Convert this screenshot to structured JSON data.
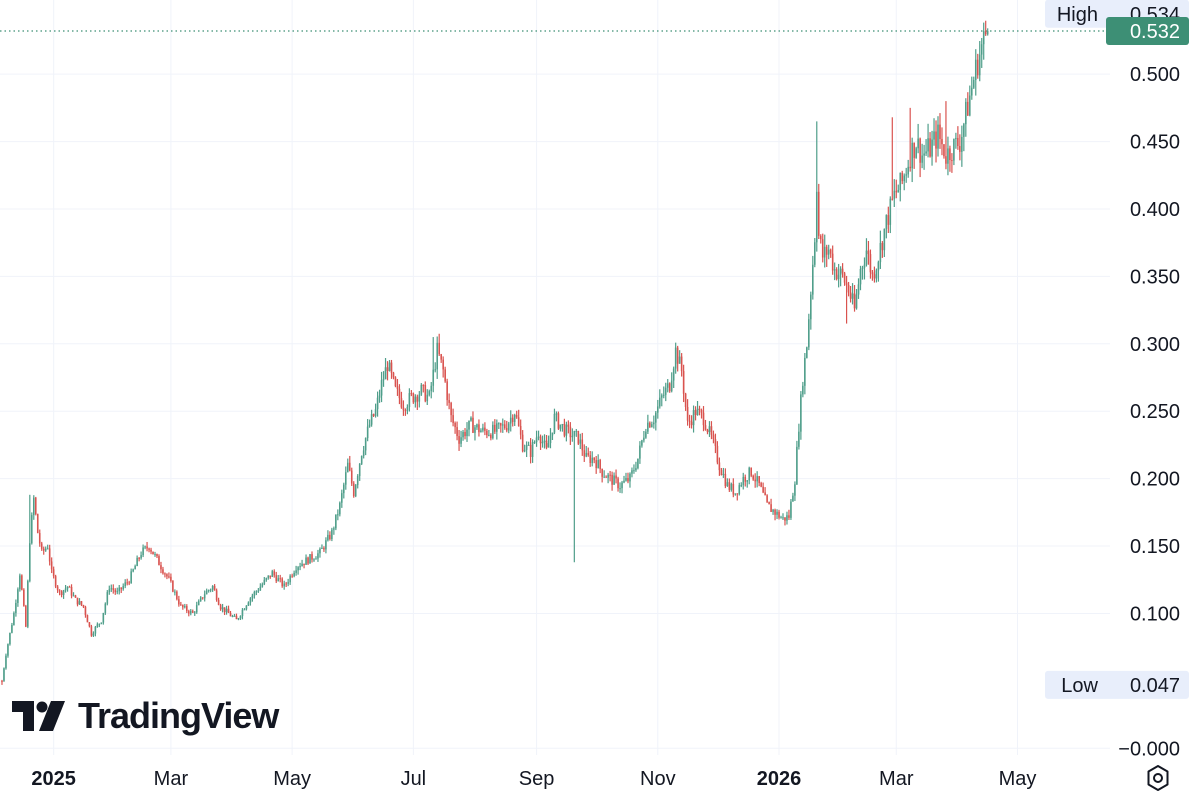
{
  "brand": {
    "name": "TradingView"
  },
  "colors": {
    "up": "#26a69a",
    "down": "#ef5350",
    "candle_up": "#4f9e8a",
    "candle_down": "#d9534f",
    "grid": "#f0f3fa",
    "text": "#131722",
    "badge_bg": "#e8eefb",
    "current_bg": "#3d8f75",
    "current_text": "#ffffff"
  },
  "icons": {
    "settings": "settings-gear-icon"
  },
  "chart_data": {
    "type": "candlestick",
    "title": "",
    "x_tick_labels": [
      {
        "label": "2025",
        "year": true,
        "t": 0
      },
      {
        "label": "Mar",
        "year": false,
        "t": 59
      },
      {
        "label": "May",
        "year": false,
        "t": 120
      },
      {
        "label": "Jul",
        "year": false,
        "t": 181
      },
      {
        "label": "Sep",
        "year": false,
        "t": 243
      },
      {
        "label": "Nov",
        "year": false,
        "t": 304
      },
      {
        "label": "2026",
        "year": true,
        "t": 365
      },
      {
        "label": "Mar",
        "year": false,
        "t": 424
      },
      {
        "label": "May",
        "year": false,
        "t": 485
      }
    ],
    "y_ticks": [
      {
        "label": "0.500",
        "v": 0.5
      },
      {
        "label": "0.450",
        "v": 0.45
      },
      {
        "label": "0.400",
        "v": 0.4
      },
      {
        "label": "0.350",
        "v": 0.35
      },
      {
        "label": "0.300",
        "v": 0.3
      },
      {
        "label": "0.250",
        "v": 0.25
      },
      {
        "label": "0.200",
        "v": 0.2
      },
      {
        "label": "0.150",
        "v": 0.15
      },
      {
        "label": "0.100",
        "v": 0.1
      },
      {
        "label": "−0.000",
        "v": 0.0
      }
    ],
    "y_range": [
      -0.005,
      0.555
    ],
    "x_range_days": [
      -27,
      524
    ],
    "high": {
      "label": "High",
      "value": 0.534,
      "display": "0.534"
    },
    "low": {
      "label": "Low",
      "value": 0.047,
      "display": "0.047"
    },
    "current": {
      "value": 0.532,
      "display": "0.532"
    },
    "price_path": [
      [
        -26,
        0.05
      ],
      [
        -24,
        0.07
      ],
      [
        -20,
        0.1
      ],
      [
        -17,
        0.13
      ],
      [
        -14,
        0.09
      ],
      [
        -12,
        0.155
      ],
      [
        -10,
        0.185
      ],
      [
        -8,
        0.16
      ],
      [
        -6,
        0.145
      ],
      [
        -3,
        0.15
      ],
      [
        -1,
        0.13
      ],
      [
        3,
        0.115
      ],
      [
        7,
        0.12
      ],
      [
        11,
        0.11
      ],
      [
        15,
        0.105
      ],
      [
        19,
        0.085
      ],
      [
        24,
        0.095
      ],
      [
        28,
        0.12
      ],
      [
        32,
        0.115
      ],
      [
        38,
        0.125
      ],
      [
        44,
        0.145
      ],
      [
        48,
        0.15
      ],
      [
        52,
        0.14
      ],
      [
        58,
        0.125
      ],
      [
        64,
        0.105
      ],
      [
        70,
        0.1
      ],
      [
        76,
        0.115
      ],
      [
        80,
        0.12
      ],
      [
        84,
        0.105
      ],
      [
        88,
        0.1
      ],
      [
        92,
        0.095
      ],
      [
        98,
        0.11
      ],
      [
        104,
        0.12
      ],
      [
        110,
        0.13
      ],
      [
        116,
        0.12
      ],
      [
        122,
        0.135
      ],
      [
        128,
        0.14
      ],
      [
        134,
        0.145
      ],
      [
        140,
        0.16
      ],
      [
        144,
        0.18
      ],
      [
        148,
        0.21
      ],
      [
        151,
        0.19
      ],
      [
        155,
        0.22
      ],
      [
        159,
        0.24
      ],
      [
        162,
        0.25
      ],
      [
        165,
        0.27
      ],
      [
        168,
        0.285
      ],
      [
        172,
        0.265
      ],
      [
        176,
        0.255
      ],
      [
        180,
        0.26
      ],
      [
        185,
        0.265
      ],
      [
        189,
        0.26
      ],
      [
        193,
        0.295
      ],
      [
        196,
        0.28
      ],
      [
        200,
        0.245
      ],
      [
        204,
        0.23
      ],
      [
        210,
        0.24
      ],
      [
        216,
        0.235
      ],
      [
        222,
        0.235
      ],
      [
        228,
        0.24
      ],
      [
        232,
        0.25
      ],
      [
        236,
        0.225
      ],
      [
        240,
        0.22
      ],
      [
        244,
        0.235
      ],
      [
        248,
        0.22
      ],
      [
        252,
        0.245
      ],
      [
        258,
        0.235
      ],
      [
        264,
        0.23
      ],
      [
        268,
        0.215
      ],
      [
        272,
        0.215
      ],
      [
        276,
        0.205
      ],
      [
        280,
        0.2
      ],
      [
        285,
        0.195
      ],
      [
        290,
        0.2
      ],
      [
        294,
        0.215
      ],
      [
        298,
        0.24
      ],
      [
        302,
        0.245
      ],
      [
        306,
        0.26
      ],
      [
        310,
        0.27
      ],
      [
        313,
        0.295
      ],
      [
        316,
        0.28
      ],
      [
        319,
        0.24
      ],
      [
        323,
        0.25
      ],
      [
        327,
        0.245
      ],
      [
        331,
        0.23
      ],
      [
        335,
        0.21
      ],
      [
        339,
        0.195
      ],
      [
        343,
        0.19
      ],
      [
        347,
        0.2
      ],
      [
        351,
        0.205
      ],
      [
        355,
        0.195
      ],
      [
        359,
        0.18
      ],
      [
        363,
        0.175
      ],
      [
        367,
        0.17
      ],
      [
        370,
        0.172
      ],
      [
        373,
        0.2
      ],
      [
        375,
        0.24
      ],
      [
        377,
        0.275
      ],
      [
        379,
        0.3
      ],
      [
        381,
        0.34
      ],
      [
        383,
        0.38
      ],
      [
        384,
        0.42
      ],
      [
        385,
        0.38
      ],
      [
        387,
        0.365
      ],
      [
        390,
        0.37
      ],
      [
        393,
        0.355
      ],
      [
        397,
        0.35
      ],
      [
        400,
        0.34
      ],
      [
        403,
        0.325
      ],
      [
        406,
        0.355
      ],
      [
        409,
        0.37
      ],
      [
        412,
        0.35
      ],
      [
        415,
        0.365
      ],
      [
        419,
        0.39
      ],
      [
        423,
        0.41
      ],
      [
        427,
        0.42
      ],
      [
        431,
        0.44
      ],
      [
        434,
        0.45
      ],
      [
        437,
        0.44
      ],
      [
        441,
        0.445
      ],
      [
        445,
        0.455
      ],
      [
        449,
        0.44
      ],
      [
        452,
        0.445
      ],
      [
        456,
        0.45
      ],
      [
        459,
        0.47
      ],
      [
        462,
        0.49
      ],
      [
        465,
        0.51
      ],
      [
        467,
        0.52
      ],
      [
        469,
        0.53
      ],
      [
        470,
        0.532
      ]
    ],
    "spikes": [
      {
        "t": -12,
        "high": 0.188
      },
      {
        "t": 191,
        "high": 0.305
      },
      {
        "t": 262,
        "low": 0.138
      },
      {
        "t": 384,
        "high": 0.465
      },
      {
        "t": 399,
        "low": 0.315
      },
      {
        "t": 422,
        "high": 0.468
      },
      {
        "t": 431,
        "high": 0.475
      },
      {
        "t": 449,
        "high": 0.48
      }
    ]
  }
}
